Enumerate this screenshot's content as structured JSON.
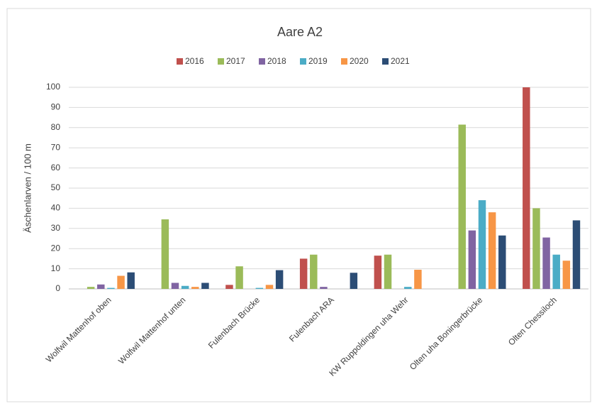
{
  "chart_data": {
    "type": "bar",
    "title": "Aare A2",
    "y_label": "Äschenlarven / 100 m",
    "categories": [
      "Wolfwil Mattenhof oben",
      "Wolfwil Mattenhof unten",
      "Fulenbach Brücke",
      "Fulenbach ARA",
      "KW Ruppoldingen uha Wehr",
      "Olten uha Boningerbrücke",
      "Olten Chessiloch"
    ],
    "series": [
      {
        "name": "2016",
        "color": "#c0504d",
        "values": [
          0,
          0,
          2,
          15,
          16.5,
          0,
          100
        ]
      },
      {
        "name": "2017",
        "color": "#9bbb59",
        "values": [
          1,
          34.5,
          11.2,
          17,
          17,
          81.5,
          40
        ]
      },
      {
        "name": "2018",
        "color": "#8064a2",
        "values": [
          2.2,
          3,
          0,
          1,
          0,
          29,
          25.5
        ]
      },
      {
        "name": "2019",
        "color": "#4bacc6",
        "values": [
          0.5,
          1.5,
          0.5,
          0,
          1,
          44,
          17
        ]
      },
      {
        "name": "2020",
        "color": "#f79646",
        "values": [
          6.5,
          1,
          2,
          0,
          9.5,
          38,
          14
        ]
      },
      {
        "name": "2021",
        "color": "#2c4d75",
        "values": [
          8.2,
          3,
          9.3,
          8,
          0,
          26.5,
          34
        ]
      }
    ],
    "ylim": [
      0,
      100
    ],
    "yticks": [
      0,
      10,
      20,
      30,
      40,
      50,
      60,
      70,
      80,
      90,
      100
    ],
    "grid": true,
    "legend": "top"
  }
}
